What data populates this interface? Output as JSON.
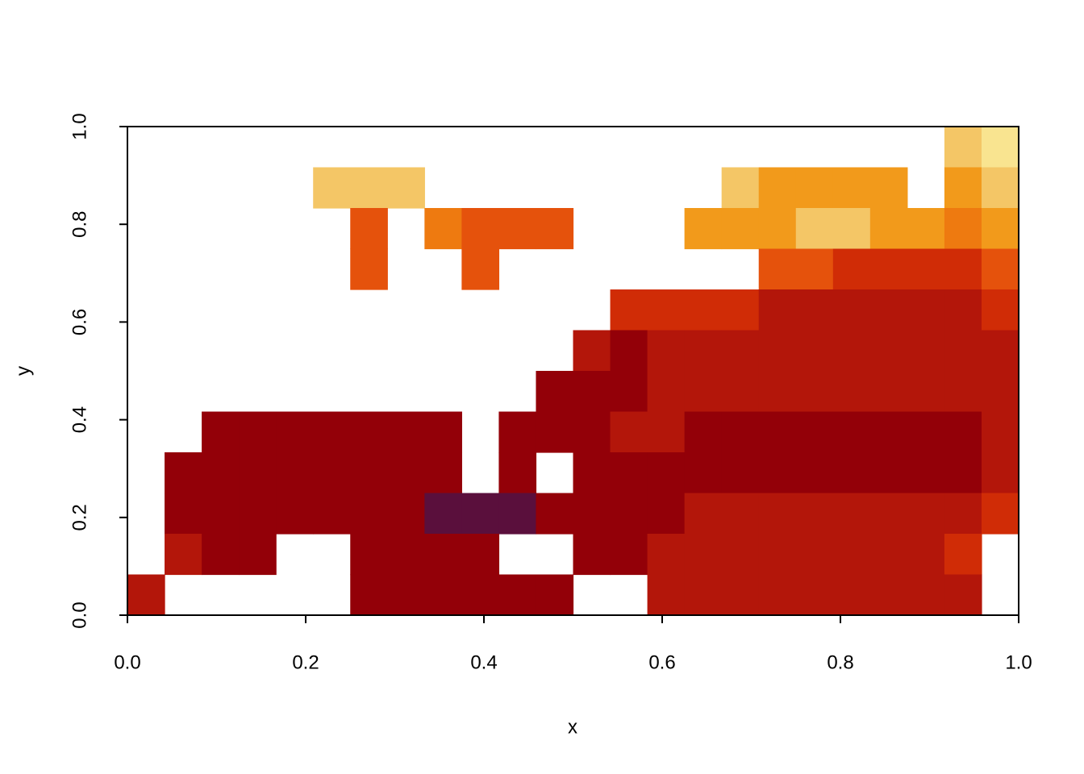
{
  "chart_data": {
    "type": "image",
    "xlabel": "x",
    "ylabel": "y",
    "xlim": [
      0,
      1
    ],
    "ylim": [
      0,
      1
    ],
    "xticks": [
      {
        "value": 0,
        "label": "0.0"
      },
      0.2,
      0.4,
      0.6,
      0.8,
      {
        "value": 1,
        "label": "1.0"
      }
    ],
    "yticks": [
      {
        "value": 0,
        "label": "0.0"
      },
      0.2,
      0.4,
      0.6,
      0.8,
      {
        "value": 1,
        "label": "1.0"
      }
    ],
    "colors": [
      "#5a0f3c",
      "#930008",
      "#b3160a",
      "#d02c06",
      "#e5520c",
      "#ee7a10",
      "#f29a1b",
      "#f4c666",
      "#f9e490"
    ],
    "z": [
      [
        null,
        null,
        null,
        null,
        null,
        null,
        null,
        null,
        null,
        null,
        null,
        null,
        null,
        null,
        null,
        null,
        null,
        null,
        null,
        null,
        null,
        null,
        7,
        8
      ],
      [
        null,
        null,
        null,
        null,
        null,
        7,
        7,
        7,
        null,
        null,
        null,
        null,
        null,
        null,
        null,
        null,
        7,
        6,
        6,
        6,
        6,
        null,
        6,
        7
      ],
      [
        null,
        null,
        null,
        null,
        null,
        null,
        4,
        null,
        5,
        4,
        4,
        4,
        null,
        null,
        null,
        6,
        6,
        6,
        7,
        7,
        6,
        6,
        5,
        6
      ],
      [
        null,
        null,
        null,
        null,
        null,
        null,
        4,
        null,
        null,
        4,
        null,
        null,
        null,
        null,
        null,
        null,
        null,
        4,
        4,
        3,
        3,
        3,
        3,
        4
      ],
      [
        null,
        null,
        null,
        null,
        null,
        null,
        null,
        null,
        null,
        null,
        null,
        null,
        null,
        3,
        3,
        3,
        3,
        2,
        2,
        2,
        2,
        2,
        2,
        3
      ],
      [
        null,
        null,
        null,
        null,
        null,
        null,
        null,
        null,
        null,
        null,
        null,
        null,
        2,
        1,
        2,
        2,
        2,
        2,
        2,
        2,
        2,
        2,
        2,
        2
      ],
      [
        null,
        null,
        null,
        null,
        null,
        null,
        null,
        null,
        null,
        null,
        null,
        1,
        1,
        1,
        2,
        2,
        2,
        2,
        2,
        2,
        2,
        2,
        2,
        2
      ],
      [
        null,
        null,
        1,
        1,
        1,
        1,
        1,
        1,
        1,
        null,
        1,
        1,
        1,
        2,
        2,
        1,
        1,
        1,
        1,
        1,
        1,
        1,
        1,
        2
      ],
      [
        null,
        1,
        1,
        1,
        1,
        1,
        1,
        1,
        1,
        null,
        1,
        null,
        1,
        1,
        1,
        1,
        1,
        1,
        1,
        1,
        1,
        1,
        1,
        2
      ],
      [
        null,
        1,
        1,
        1,
        1,
        1,
        1,
        1,
        0,
        0,
        0,
        1,
        1,
        1,
        1,
        2,
        2,
        2,
        2,
        2,
        2,
        2,
        2,
        3
      ],
      [
        null,
        2,
        1,
        1,
        null,
        null,
        1,
        1,
        1,
        1,
        null,
        null,
        1,
        1,
        2,
        2,
        2,
        2,
        2,
        2,
        2,
        2,
        3,
        null
      ],
      [
        2,
        null,
        null,
        null,
        null,
        null,
        1,
        1,
        1,
        1,
        1,
        1,
        null,
        null,
        2,
        2,
        2,
        2,
        2,
        2,
        2,
        2,
        2,
        null
      ]
    ]
  }
}
